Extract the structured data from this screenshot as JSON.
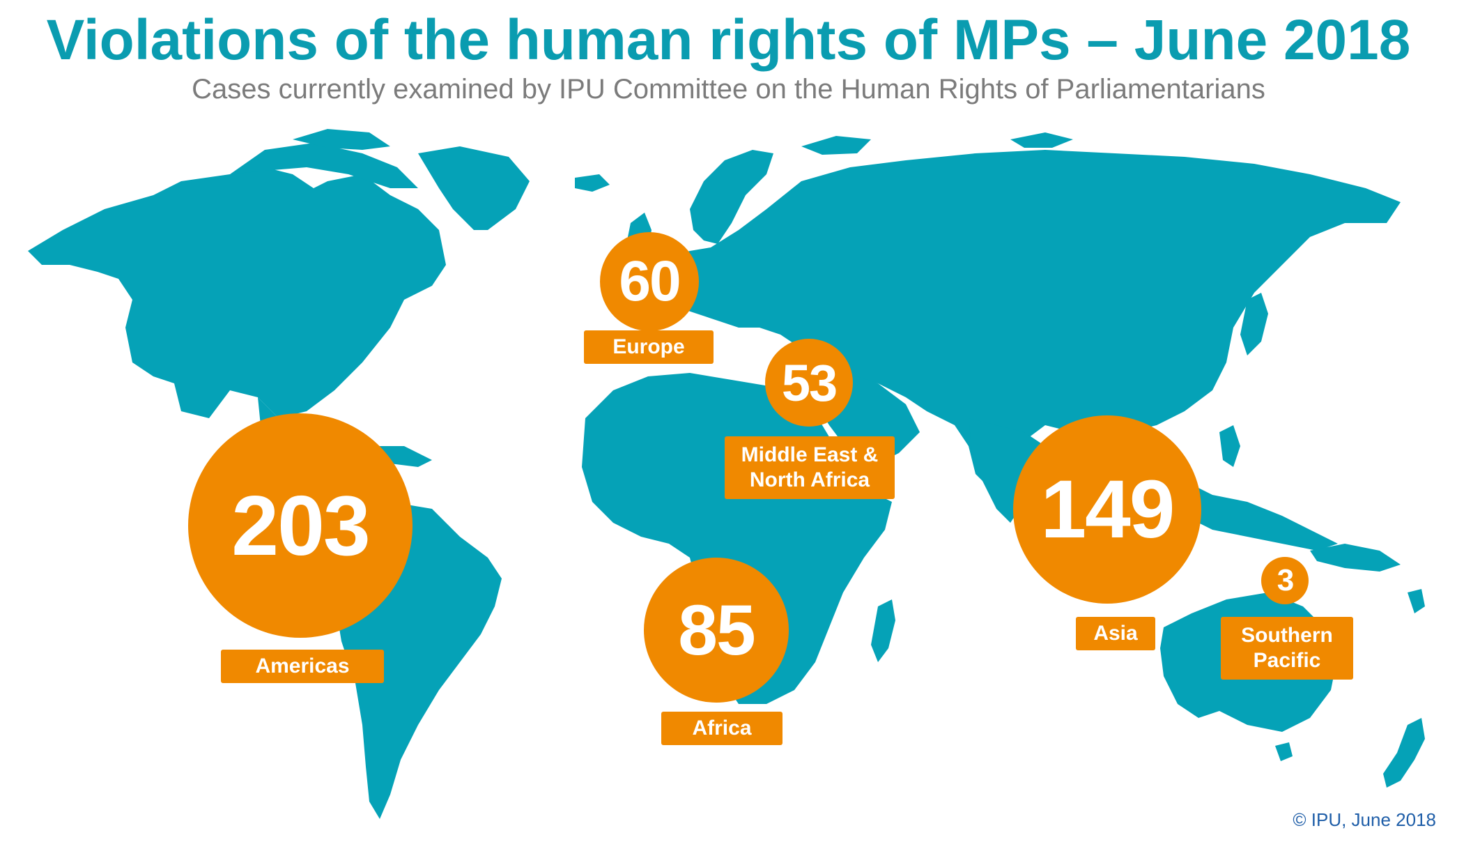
{
  "title": "Violations of the human rights of MPs – June 2018",
  "subtitle": "Cases currently examined by IPU Committee on the Human Rights of Parliamentarians",
  "colors": {
    "title": "#0a9cb0",
    "subtitle": "#7b7b7b",
    "land": "#05a2b7",
    "bubble": "#f08900",
    "copyright": "#1f5ea8"
  },
  "regions": {
    "americas": {
      "value": "203",
      "label": "Americas"
    },
    "europe": {
      "value": "60",
      "label": "Europe"
    },
    "mena": {
      "value": "53",
      "label_line1": "Middle East &",
      "label_line2": "North Africa"
    },
    "africa": {
      "value": "85",
      "label": "Africa"
    },
    "asia": {
      "value": "149",
      "label": "Asia"
    },
    "southern_pacific": {
      "value": "3",
      "label_line1": "Southern",
      "label_line2": "Pacific"
    }
  },
  "copyright": "© IPU, June 2018"
}
